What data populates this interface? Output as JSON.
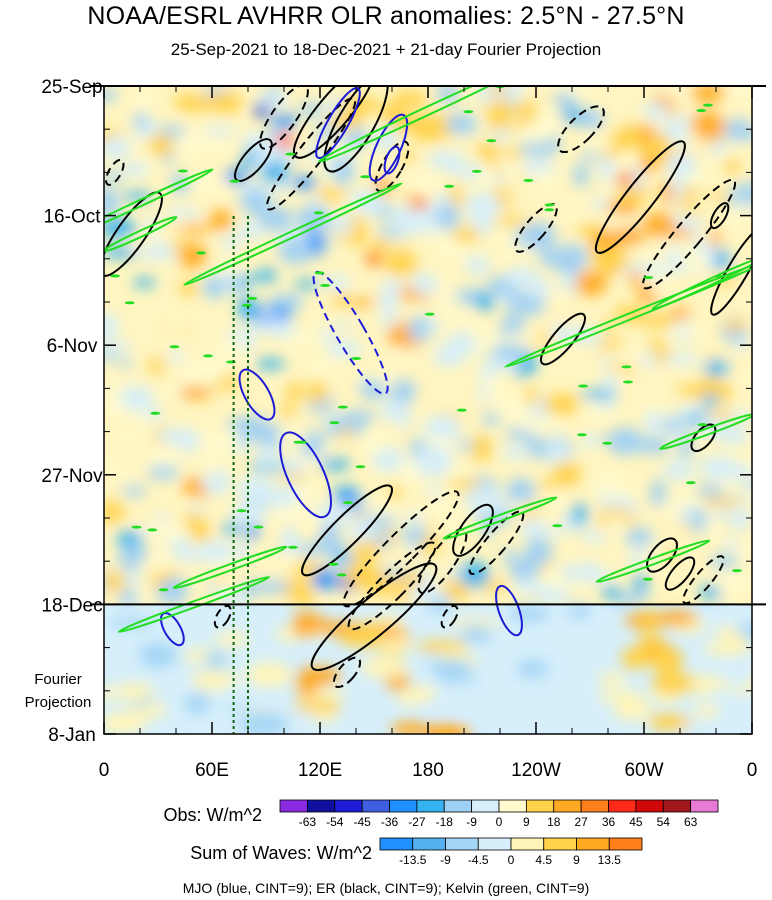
{
  "chart_data": {
    "type": "heatmap",
    "title": "NOAA/ESRL AVHRR OLR anomalies: 2.5°N - 27.5°N",
    "subtitle": "25-Sep-2021 to 18-Dec-2021 + 21-day Fourier Projection",
    "x_tick_labels": [
      "0",
      "60E",
      "120E",
      "180",
      "120W",
      "60W",
      "0"
    ],
    "x_ticks_deg": [
      0,
      60,
      120,
      180,
      240,
      300,
      360
    ],
    "xlim": [
      0,
      360
    ],
    "y_tick_labels": [
      "25-Sep",
      "16-Oct",
      "6-Nov",
      "27-Nov",
      "18-Dec",
      "8-Jan"
    ],
    "y_ticks_day": [
      0,
      21,
      42,
      63,
      84,
      105
    ],
    "ylim_days": [
      0,
      105
    ],
    "observation_end_day": 84,
    "projection_label": [
      "Fourier",
      "Projection"
    ],
    "reference_lines_deg": [
      72,
      80
    ],
    "obs_legend": {
      "label": "Obs: W/m^2",
      "levels": [
        "-63",
        "-54",
        "-45",
        "-36",
        "-27",
        "-18",
        "-9",
        "0",
        "9",
        "18",
        "27",
        "36",
        "45",
        "54",
        "63"
      ],
      "colors": [
        "#8a2be2",
        "#1010a0",
        "#1c1cd6",
        "#3f5fe0",
        "#1e90ff",
        "#34b3f0",
        "#9fd0f5",
        "#d6effb",
        "#fffacd",
        "#ffd24a",
        "#ffaa22",
        "#ff7f1a",
        "#ff2a1a",
        "#d00808",
        "#a0181c",
        "#e67ad4"
      ]
    },
    "sum_legend": {
      "label": "Sum of Waves: W/m^2",
      "levels": [
        "-13.5",
        "-9",
        "-4.5",
        "0",
        "4.5",
        "9",
        "13.5"
      ],
      "colors": [
        "#1e90ff",
        "#55b0f0",
        "#a6d6f5",
        "#d6effb",
        "#fff5b8",
        "#ffd24a",
        "#ffaa22",
        "#ff7f1a"
      ]
    },
    "contour_note": "MJO (blue, CINT=9); ER (black, CINT=9); Kelvin (green, CINT=9)",
    "wave_colors": {
      "mjo": "#1c1cd6",
      "er": "#000000",
      "kelvin": "#22dd22"
    }
  }
}
